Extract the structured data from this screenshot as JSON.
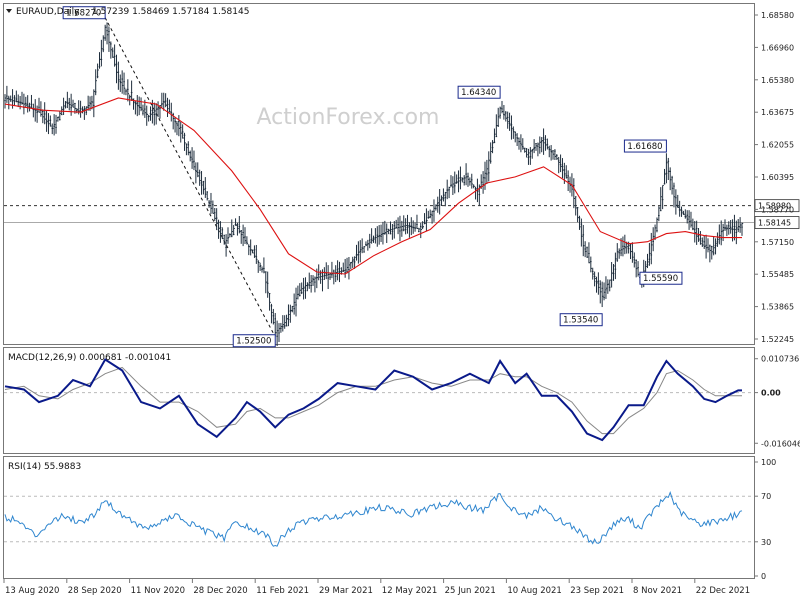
{
  "header": {
    "symbol": "EURAUD,Daily",
    "ohlc": "1.57239 1.58469 1.57184 1.58145"
  },
  "watermark": "ActionForex.com",
  "colors": {
    "candle": "#1e2d3c",
    "ma": "#dd1111",
    "macd": "#0a1a8a",
    "signal": "#888888",
    "rsi": "#2f86cf",
    "grid": "#bbbbbb",
    "label_border": "#1a2a8c"
  },
  "chart_data": [
    {
      "type": "candlestick",
      "title": "EURAUD,Daily",
      "ylim": [
        1.5224,
        1.6885
      ],
      "y_ticks": [
        "1.68580",
        "1.66960",
        "1.65380",
        "1.63675",
        "1.62055",
        "1.60395",
        "1.58770",
        "1.57150",
        "1.55485",
        "1.53865",
        "1.52245"
      ],
      "x_ticks": [
        "13 Aug 2020",
        "28 Sep 2020",
        "11 Nov 2020",
        "28 Dec 2020",
        "11 Feb 2021",
        "29 Mar 2021",
        "12 May 2021",
        "25 Jun 2021",
        "10 Aug 2021",
        "23 Sep 2021",
        "8 Nov 2021",
        "22 Dec 2021"
      ],
      "price_path": [
        [
          0,
          1.643
        ],
        [
          10,
          1.64
        ],
        [
          18,
          1.636
        ],
        [
          25,
          1.628
        ],
        [
          32,
          1.641
        ],
        [
          40,
          1.636
        ],
        [
          46,
          1.641
        ],
        [
          53,
          1.678
        ],
        [
          60,
          1.652
        ],
        [
          68,
          1.641
        ],
        [
          76,
          1.634
        ],
        [
          84,
          1.641
        ],
        [
          92,
          1.628
        ],
        [
          100,
          1.609
        ],
        [
          108,
          1.591
        ],
        [
          116,
          1.571
        ],
        [
          122,
          1.58
        ],
        [
          130,
          1.568
        ],
        [
          137,
          1.557
        ],
        [
          143,
          1.527
        ],
        [
          148,
          1.532
        ],
        [
          156,
          1.548
        ],
        [
          164,
          1.554
        ],
        [
          172,
          1.556
        ],
        [
          180,
          1.558
        ],
        [
          188,
          1.568
        ],
        [
          196,
          1.574
        ],
        [
          204,
          1.578
        ],
        [
          212,
          1.58
        ],
        [
          220,
          1.578
        ],
        [
          228,
          1.59
        ],
        [
          236,
          1.6
        ],
        [
          244,
          1.604
        ],
        [
          250,
          1.597
        ],
        [
          255,
          1.608
        ],
        [
          262,
          1.638
        ],
        [
          268,
          1.628
        ],
        [
          276,
          1.615
        ],
        [
          284,
          1.622
        ],
        [
          292,
          1.613
        ],
        [
          300,
          1.598
        ],
        [
          306,
          1.57
        ],
        [
          311,
          1.556
        ],
        [
          316,
          1.545
        ],
        [
          320,
          1.553
        ],
        [
          324,
          1.567
        ],
        [
          330,
          1.57
        ],
        [
          336,
          1.553
        ],
        [
          340,
          1.562
        ],
        [
          345,
          1.583
        ],
        [
          350,
          1.611
        ],
        [
          355,
          1.59
        ],
        [
          362,
          1.582
        ],
        [
          368,
          1.571
        ],
        [
          374,
          1.567
        ],
        [
          380,
          1.579
        ],
        [
          386,
          1.578
        ],
        [
          390,
          1.581
        ]
      ],
      "moving_average": [
        [
          0,
          1.64
        ],
        [
          20,
          1.637
        ],
        [
          40,
          1.636
        ],
        [
          60,
          1.643
        ],
        [
          80,
          1.64
        ],
        [
          100,
          1.627
        ],
        [
          120,
          1.607
        ],
        [
          135,
          1.588
        ],
        [
          150,
          1.566
        ],
        [
          165,
          1.557
        ],
        [
          180,
          1.556
        ],
        [
          195,
          1.565
        ],
        [
          210,
          1.572
        ],
        [
          225,
          1.578
        ],
        [
          240,
          1.591
        ],
        [
          255,
          1.601
        ],
        [
          270,
          1.604
        ],
        [
          285,
          1.609
        ],
        [
          300,
          1.6
        ],
        [
          315,
          1.577
        ],
        [
          330,
          1.571
        ],
        [
          340,
          1.572
        ],
        [
          350,
          1.576
        ],
        [
          360,
          1.577
        ],
        [
          370,
          1.575
        ],
        [
          380,
          1.574
        ],
        [
          390,
          1.574
        ]
      ],
      "reference_lines": [
        {
          "value": 1.5898,
          "label": "1.58980",
          "style": "dashed"
        },
        {
          "value": 1.58145,
          "label": "1.58145",
          "style": "solid"
        }
      ],
      "annotations": [
        {
          "text": "1.68270",
          "bar": 53,
          "value": 1.6827
        },
        {
          "text": "1.52500",
          "bar": 143,
          "value": 1.525
        },
        {
          "text": "1.64340",
          "bar": 262,
          "value": 1.6434
        },
        {
          "text": "1.61680",
          "bar": 350,
          "value": 1.6168
        },
        {
          "text": "1.53540",
          "bar": 316,
          "value": 1.5354
        },
        {
          "text": "1.55590",
          "bar": 336,
          "value": 1.5559
        }
      ],
      "trendline": {
        "from": [
          53,
          1.6827
        ],
        "to": [
          143,
          1.525
        ],
        "style": "dashed"
      }
    },
    {
      "type": "line",
      "title": "MACD(12,26,9) 0.000681 -0.001041",
      "ylim": [
        -0.0185,
        0.0135
      ],
      "y_ticks": [
        "0.010736",
        "0.00",
        "-0.016046"
      ],
      "zero_label": "0.00",
      "series": [
        {
          "name": "MACD",
          "points": [
            [
              0,
              0.002
            ],
            [
              10,
              0.001
            ],
            [
              18,
              -0.003
            ],
            [
              28,
              -0.001
            ],
            [
              36,
              0.004
            ],
            [
              45,
              0.002
            ],
            [
              53,
              0.0105
            ],
            [
              62,
              0.007
            ],
            [
              72,
              -0.003
            ],
            [
              82,
              -0.005
            ],
            [
              92,
              -0.001
            ],
            [
              102,
              -0.01
            ],
            [
              112,
              -0.014
            ],
            [
              122,
              -0.008
            ],
            [
              128,
              -0.003
            ],
            [
              135,
              -0.006
            ],
            [
              143,
              -0.011
            ],
            [
              150,
              -0.007
            ],
            [
              158,
              -0.005
            ],
            [
              166,
              -0.002
            ],
            [
              176,
              0.003
            ],
            [
              186,
              0.002
            ],
            [
              196,
              0.001
            ],
            [
              206,
              0.007
            ],
            [
              216,
              0.005
            ],
            [
              226,
              0.001
            ],
            [
              236,
              0.003
            ],
            [
              246,
              0.006
            ],
            [
              256,
              0.003
            ],
            [
              262,
              0.01
            ],
            [
              270,
              0.003
            ],
            [
              276,
              0.006
            ],
            [
              284,
              -0.001
            ],
            [
              292,
              -0.001
            ],
            [
              300,
              -0.006
            ],
            [
              308,
              -0.013
            ],
            [
              316,
              -0.015
            ],
            [
              322,
              -0.011
            ],
            [
              330,
              -0.004
            ],
            [
              338,
              -0.004
            ],
            [
              345,
              0.005
            ],
            [
              350,
              0.01
            ],
            [
              356,
              0.006
            ],
            [
              364,
              0.002
            ],
            [
              370,
              -0.002
            ],
            [
              376,
              -0.003
            ],
            [
              382,
              -0.001
            ],
            [
              388,
              0.0007
            ],
            [
              390,
              0.0007
            ]
          ]
        },
        {
          "name": "Signal",
          "points": [
            [
              0,
              0.001
            ],
            [
              10,
              0.002
            ],
            [
              18,
              -0.001
            ],
            [
              28,
              -0.002
            ],
            [
              36,
              0.001
            ],
            [
              45,
              0.003
            ],
            [
              53,
              0.006
            ],
            [
              62,
              0.008
            ],
            [
              72,
              0.002
            ],
            [
              82,
              -0.003
            ],
            [
              92,
              -0.003
            ],
            [
              102,
              -0.006
            ],
            [
              112,
              -0.011
            ],
            [
              122,
              -0.01
            ],
            [
              128,
              -0.006
            ],
            [
              135,
              -0.005
            ],
            [
              143,
              -0.008
            ],
            [
              150,
              -0.008
            ],
            [
              158,
              -0.006
            ],
            [
              166,
              -0.004
            ],
            [
              176,
              0.0
            ],
            [
              186,
              0.002
            ],
            [
              196,
              0.002
            ],
            [
              206,
              0.004
            ],
            [
              216,
              0.005
            ],
            [
              226,
              0.003
            ],
            [
              236,
              0.002
            ],
            [
              246,
              0.004
            ],
            [
              256,
              0.004
            ],
            [
              262,
              0.006
            ],
            [
              270,
              0.005
            ],
            [
              276,
              0.005
            ],
            [
              284,
              0.002
            ],
            [
              292,
              0.0
            ],
            [
              300,
              -0.003
            ],
            [
              308,
              -0.009
            ],
            [
              316,
              -0.013
            ],
            [
              322,
              -0.013
            ],
            [
              330,
              -0.008
            ],
            [
              338,
              -0.005
            ],
            [
              345,
              0.0
            ],
            [
              350,
              0.006
            ],
            [
              356,
              0.007
            ],
            [
              364,
              0.004
            ],
            [
              370,
              0.001
            ],
            [
              376,
              -0.001
            ],
            [
              382,
              -0.001
            ],
            [
              388,
              -0.001
            ],
            [
              390,
              -0.001
            ]
          ]
        }
      ]
    },
    {
      "type": "line",
      "title": "RSI(14) 55.9883",
      "ylim": [
        0,
        100
      ],
      "y_ticks": [
        "100",
        "70",
        "30",
        "0"
      ],
      "levels": [
        70,
        30
      ],
      "series": [
        {
          "name": "RSI",
          "points": [
            [
              0,
              52
            ],
            [
              8,
              47
            ],
            [
              16,
              35
            ],
            [
              24,
              48
            ],
            [
              32,
              53
            ],
            [
              40,
              47
            ],
            [
              48,
              55
            ],
            [
              53,
              68
            ],
            [
              58,
              58
            ],
            [
              66,
              50
            ],
            [
              74,
              41
            ],
            [
              82,
              47
            ],
            [
              90,
              53
            ],
            [
              100,
              44
            ],
            [
              108,
              38
            ],
            [
              116,
              33
            ],
            [
              122,
              48
            ],
            [
              130,
              41
            ],
            [
              138,
              36
            ],
            [
              143,
              27
            ],
            [
              150,
              40
            ],
            [
              158,
              48
            ],
            [
              166,
              50
            ],
            [
              174,
              52
            ],
            [
              182,
              55
            ],
            [
              190,
              57
            ],
            [
              198,
              60
            ],
            [
              206,
              58
            ],
            [
              214,
              54
            ],
            [
              222,
              58
            ],
            [
              230,
              62
            ],
            [
              238,
              64
            ],
            [
              246,
              60
            ],
            [
              254,
              58
            ],
            [
              262,
              72
            ],
            [
              268,
              60
            ],
            [
              276,
              52
            ],
            [
              284,
              60
            ],
            [
              292,
              50
            ],
            [
              300,
              44
            ],
            [
              308,
              33
            ],
            [
              314,
              29
            ],
            [
              318,
              38
            ],
            [
              324,
              48
            ],
            [
              330,
              50
            ],
            [
              336,
              42
            ],
            [
              342,
              55
            ],
            [
              348,
              66
            ],
            [
              352,
              72
            ],
            [
              356,
              58
            ],
            [
              362,
              50
            ],
            [
              368,
              46
            ],
            [
              374,
              47
            ],
            [
              380,
              50
            ],
            [
              386,
              53
            ],
            [
              390,
              56
            ]
          ]
        }
      ]
    }
  ]
}
